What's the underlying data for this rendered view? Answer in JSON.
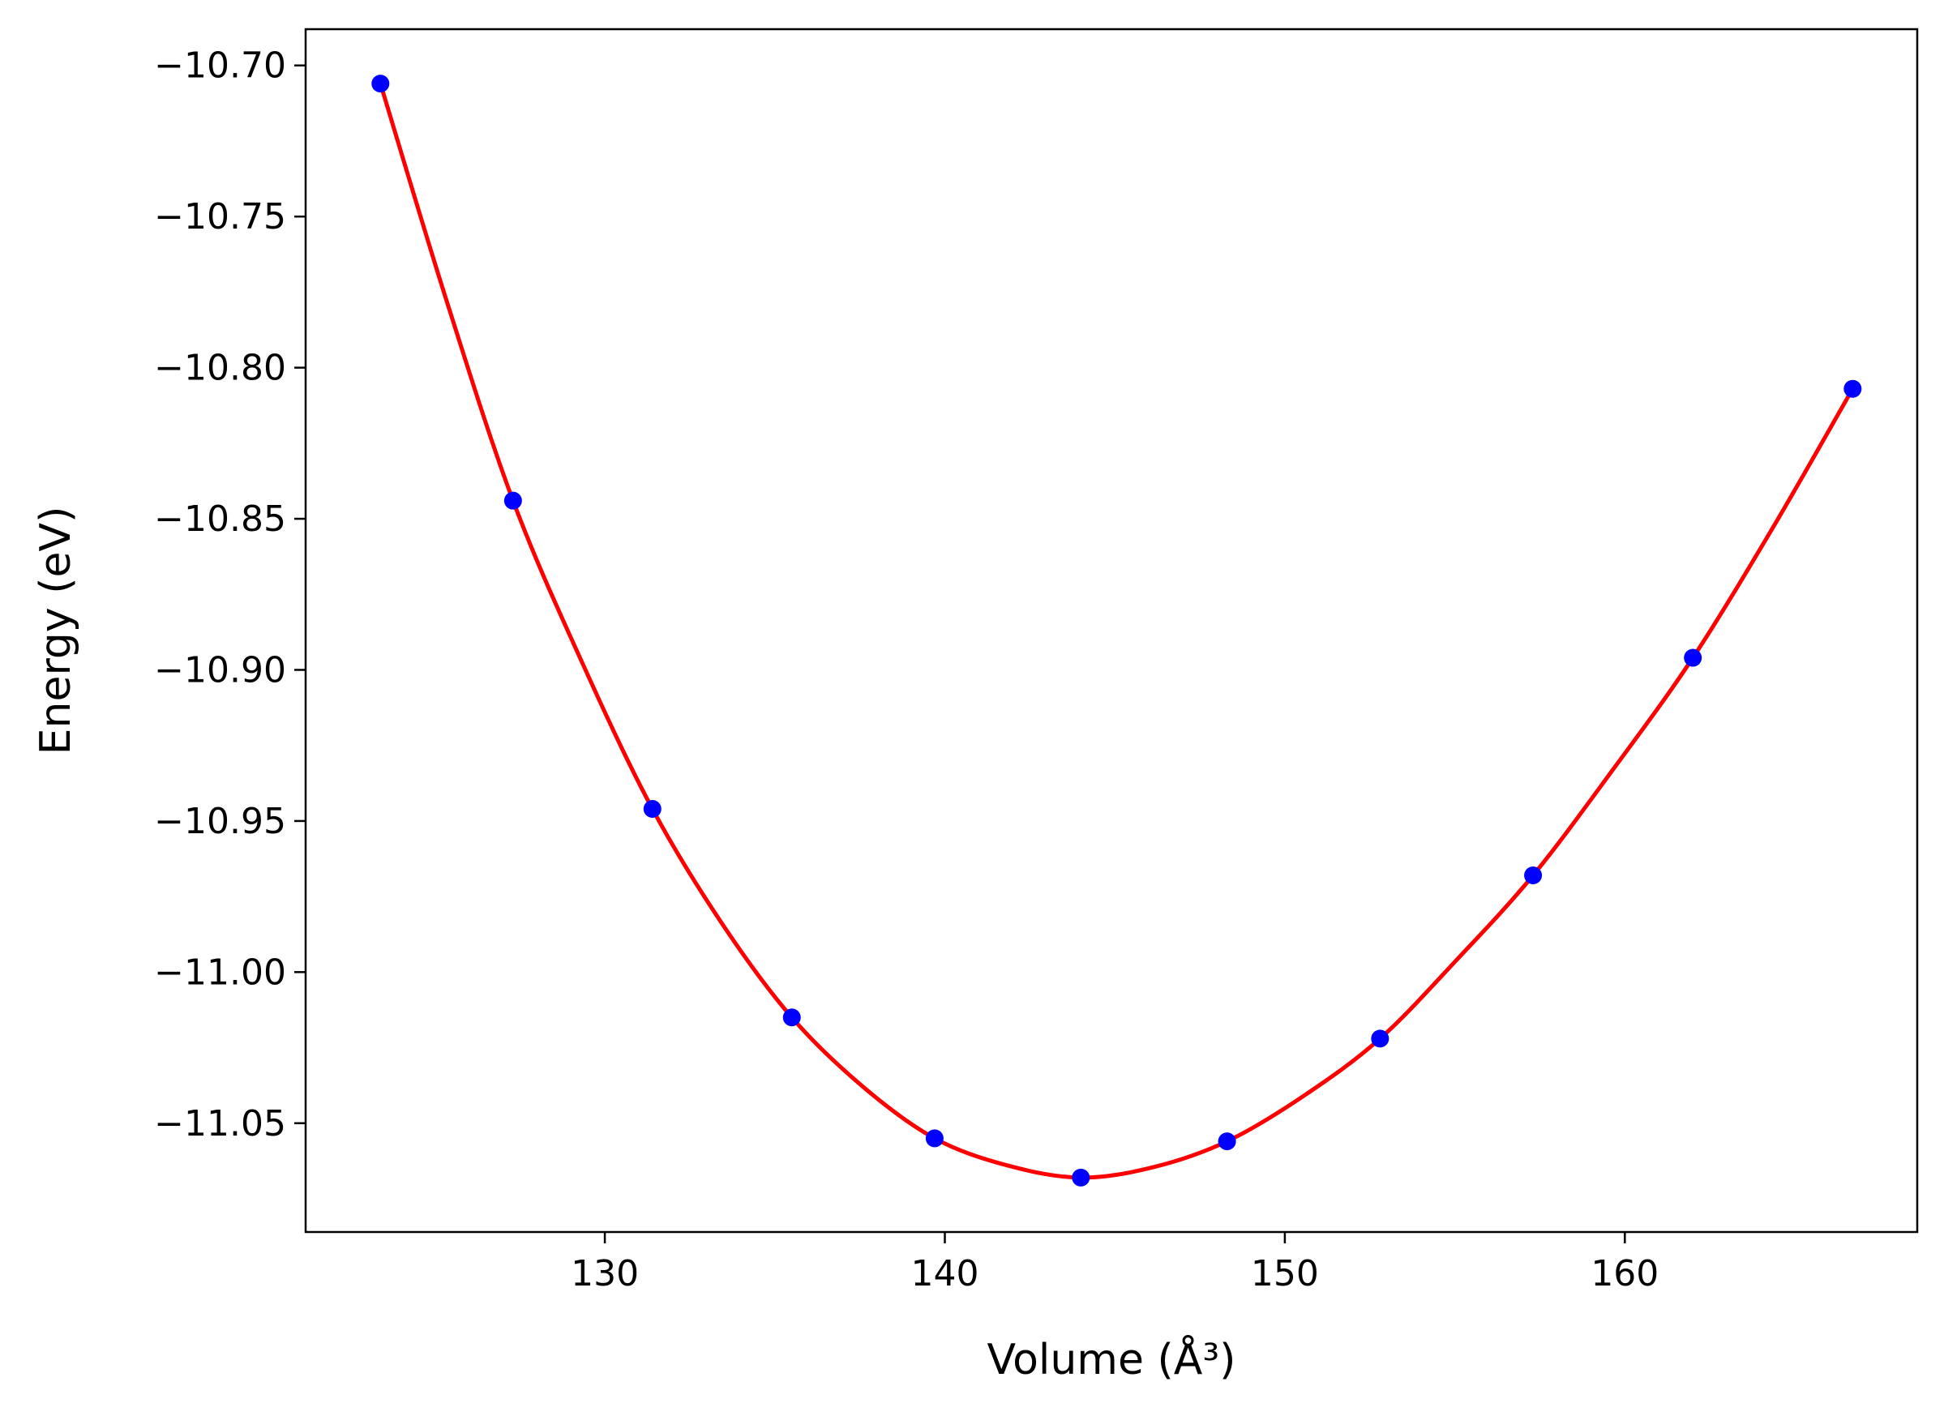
{
  "chart_data": {
    "type": "scatter",
    "xlabel": "Volume (Å³)",
    "ylabel": "Energy (eV)",
    "xlim": [
      121.2,
      168.6
    ],
    "ylim": [
      -11.086,
      -10.688
    ],
    "xticks": [
      130,
      140,
      150,
      160
    ],
    "yticks": [
      -10.7,
      -10.75,
      -10.8,
      -10.85,
      -10.9,
      -10.95,
      -11.0,
      -11.05
    ],
    "xtick_labels": [
      "130",
      "140",
      "150",
      "160"
    ],
    "ytick_labels": [
      "−10.70",
      "−10.75",
      "−10.80",
      "−10.85",
      "−10.90",
      "−10.95",
      "−11.00",
      "−11.05"
    ],
    "grid": false,
    "series": [
      {
        "kind": "points",
        "color": "#0000ff",
        "x": [
          123.4,
          127.3,
          131.4,
          135.5,
          139.7,
          144.0,
          148.3,
          152.8,
          157.3,
          162.0,
          166.7
        ],
        "y": [
          -10.706,
          -10.844,
          -10.946,
          -11.015,
          -11.055,
          -11.068,
          -11.056,
          -11.022,
          -10.968,
          -10.896,
          -10.807
        ]
      },
      {
        "kind": "fit-line",
        "color": "#ff0000",
        "x": [
          123.4,
          125.35,
          127.3,
          129.35,
          131.4,
          133.45,
          135.5,
          137.6,
          139.7,
          141.85,
          144.0,
          146.15,
          148.3,
          150.55,
          152.8,
          155.05,
          157.3,
          159.65,
          162.0,
          164.35,
          166.7
        ],
        "y": [
          -10.706,
          -10.778,
          -10.844,
          -10.898,
          -10.946,
          -10.984,
          -11.015,
          -11.038,
          -11.055,
          -11.064,
          -11.068,
          -11.0645,
          -11.056,
          -11.041,
          -11.022,
          -10.996,
          -10.968,
          -10.933,
          -10.896,
          -10.853,
          -10.807
        ]
      }
    ]
  }
}
